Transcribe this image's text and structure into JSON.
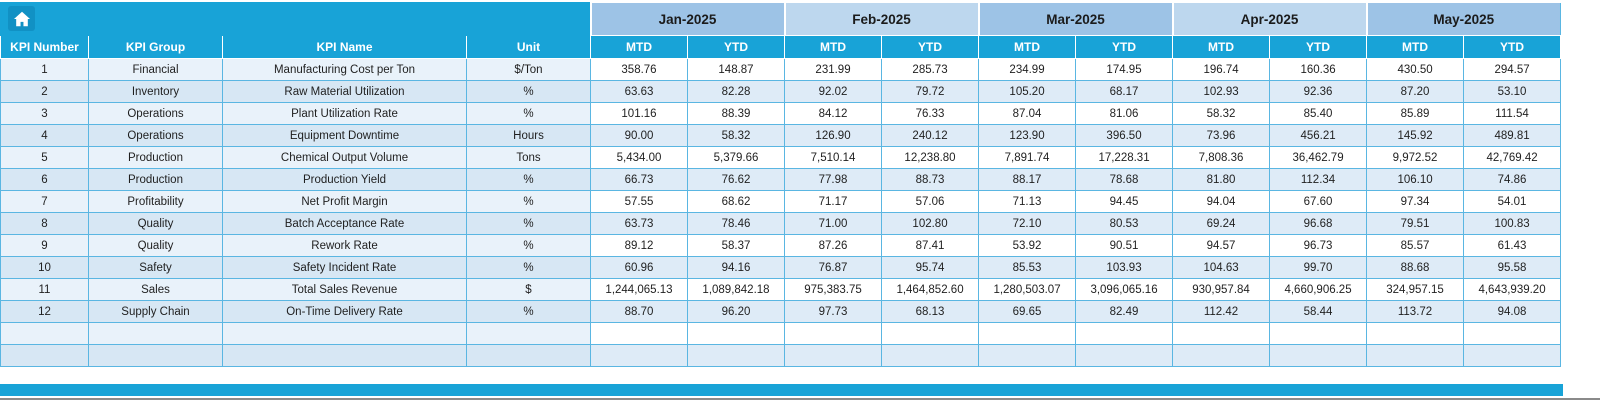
{
  "colors": {
    "header_teal": "#18A3D7",
    "header_teal_dark": "#1191C4",
    "month_a": "#9DC3E6",
    "month_b": "#BDD7EE",
    "band_blue": "#DEEBF7",
    "band_pale": "#E9F2FA",
    "band_pale_2": "#D7E7F4",
    "grid": "#5AB6E2",
    "text": "#1F1F1F"
  },
  "table": {
    "corner_icon": "home",
    "months": [
      "Jan-2025",
      "Feb-2025",
      "Mar-2025",
      "Apr-2025",
      "May-2025"
    ],
    "sub": {
      "mtd": "MTD",
      "ytd": "YTD"
    },
    "left_headers": [
      "KPI Number",
      "KPI Group",
      "KPI Name",
      "Unit"
    ],
    "empty_rows": 2,
    "rows": [
      {
        "num": "1",
        "group": "Financial",
        "name": "Manufacturing Cost per Ton",
        "unit": "$/Ton",
        "values": [
          "358.76",
          "148.87",
          "231.99",
          "285.73",
          "234.99",
          "174.95",
          "196.74",
          "160.36",
          "430.50",
          "294.57"
        ]
      },
      {
        "num": "2",
        "group": "Inventory",
        "name": "Raw Material Utilization",
        "unit": "%",
        "values": [
          "63.63",
          "82.28",
          "92.02",
          "79.72",
          "105.20",
          "68.17",
          "102.93",
          "92.36",
          "87.20",
          "53.10"
        ]
      },
      {
        "num": "3",
        "group": "Operations",
        "name": "Plant Utilization Rate",
        "unit": "%",
        "values": [
          "101.16",
          "88.39",
          "84.12",
          "76.33",
          "87.04",
          "81.06",
          "58.32",
          "85.40",
          "85.89",
          "111.54"
        ]
      },
      {
        "num": "4",
        "group": "Operations",
        "name": "Equipment Downtime",
        "unit": "Hours",
        "values": [
          "90.00",
          "58.32",
          "126.90",
          "240.12",
          "123.90",
          "396.50",
          "73.96",
          "456.21",
          "145.92",
          "489.81"
        ]
      },
      {
        "num": "5",
        "group": "Production",
        "name": "Chemical Output Volume",
        "unit": "Tons",
        "values": [
          "5,434.00",
          "5,379.66",
          "7,510.14",
          "12,238.80",
          "7,891.74",
          "17,228.31",
          "7,808.36",
          "36,462.79",
          "9,972.52",
          "42,769.42"
        ]
      },
      {
        "num": "6",
        "group": "Production",
        "name": "Production Yield",
        "unit": "%",
        "values": [
          "66.73",
          "76.62",
          "77.98",
          "88.73",
          "88.17",
          "78.68",
          "81.80",
          "112.34",
          "106.10",
          "74.86"
        ]
      },
      {
        "num": "7",
        "group": "Profitability",
        "name": "Net Profit Margin",
        "unit": "%",
        "values": [
          "57.55",
          "68.62",
          "71.17",
          "57.06",
          "71.13",
          "94.45",
          "94.04",
          "67.60",
          "97.34",
          "54.01"
        ]
      },
      {
        "num": "8",
        "group": "Quality",
        "name": "Batch Acceptance Rate",
        "unit": "%",
        "values": [
          "63.73",
          "78.46",
          "71.00",
          "102.80",
          "72.10",
          "80.53",
          "69.24",
          "96.68",
          "79.51",
          "100.83"
        ]
      },
      {
        "num": "9",
        "group": "Quality",
        "name": "Rework Rate",
        "unit": "%",
        "values": [
          "89.12",
          "58.37",
          "87.26",
          "87.41",
          "53.92",
          "90.51",
          "94.57",
          "96.73",
          "85.57",
          "61.43"
        ]
      },
      {
        "num": "10",
        "group": "Safety",
        "name": "Safety Incident Rate",
        "unit": "%",
        "values": [
          "60.96",
          "94.16",
          "76.87",
          "95.74",
          "85.53",
          "103.93",
          "104.63",
          "99.70",
          "88.68",
          "95.58"
        ]
      },
      {
        "num": "11",
        "group": "Sales",
        "name": "Total Sales Revenue",
        "unit": "$",
        "values": [
          "1,244,065.13",
          "1,089,842.18",
          "975,383.75",
          "1,464,852.60",
          "1,280,503.07",
          "3,096,065.16",
          "930,957.84",
          "4,660,906.25",
          "324,957.15",
          "4,643,939.20"
        ]
      },
      {
        "num": "12",
        "group": "Supply Chain",
        "name": "On-Time Delivery Rate",
        "unit": "%",
        "values": [
          "88.70",
          "96.20",
          "97.73",
          "68.13",
          "69.65",
          "82.49",
          "112.42",
          "58.44",
          "113.72",
          "94.08"
        ]
      }
    ]
  }
}
